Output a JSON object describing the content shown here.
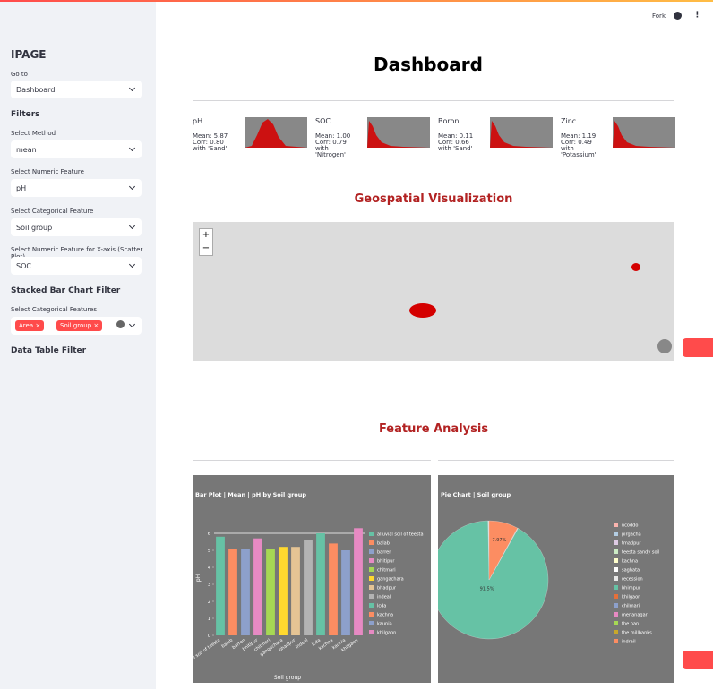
{
  "top_bar": {
    "fork": "Fork"
  },
  "sidebar": {
    "app_name": "IPAGE",
    "goto_label": "Go to",
    "goto_value": "Dashboard",
    "filters": "Filters",
    "method_label": "Select Method",
    "method_value": "mean",
    "numeric_label": "Select Numeric Feature",
    "numeric_value": "pH",
    "categorical_label": "Select Categorical Feature",
    "categorical_value": "Soil group",
    "xaxis_label": "Select Numeric Feature for X-axis (Scatter Plot)",
    "xaxis_value": "SOC",
    "stacked_heading": "Stacked Bar Chart Filter",
    "stacked_label": "Select Categorical Features",
    "stacked_tags": [
      "Area",
      "Soil group"
    ],
    "table_heading": "Data Table Filter"
  },
  "header": {
    "title": "Dashboard"
  },
  "metrics": [
    {
      "label": "pH",
      "mean": "Mean: 5.87",
      "corr": "Corr: 0.80",
      "with": "with 'Sand'"
    },
    {
      "label": "SOC",
      "mean": "Mean: 1.00",
      "corr": "Corr: 0.79",
      "with": "with 'Nitrogen'"
    },
    {
      "label": "Boron",
      "mean": "Mean: 0.11",
      "corr": "Corr: 0.66",
      "with": "with 'Sand'"
    },
    {
      "label": "Zinc",
      "mean": "Mean: 1.19",
      "corr": "Corr: 0.49",
      "with": "with 'Potassium'"
    }
  ],
  "sections": {
    "geo": "Geospatial Visualization",
    "feature": "Feature Analysis"
  },
  "map": {
    "zoom_in": "+",
    "zoom_out": "−"
  },
  "chart_data": [
    {
      "type": "bar",
      "title": "Bar Plot | Mean | pH by Soil group",
      "x_label": "Soil group",
      "y_label": "pH",
      "categories": [
        "alluvial soil of teesta",
        "balab",
        "barren",
        "bhitipur",
        "chitmari",
        "gangachara",
        "bhadpur",
        "indeal",
        "lcda",
        "kachna",
        "kaunia",
        "khilgaon"
      ],
      "values": [
        5.8,
        5.1,
        5.1,
        5.7,
        5.1,
        5.2,
        5.2,
        5.6,
        6.0,
        5.4,
        5.0,
        6.3
      ],
      "colors": [
        "#66c2a5",
        "#fc8d62",
        "#8da0cb",
        "#e78ac3",
        "#a6d854",
        "#ffd92f",
        "#e5c494",
        "#b3b3b3",
        "#66c2a5",
        "#fc8d62",
        "#8da0cb",
        "#e78ac3"
      ],
      "ylim": [
        0,
        7
      ],
      "yticks": [
        0,
        1,
        2,
        3,
        4,
        5,
        6
      ],
      "grid": true
    },
    {
      "type": "pie",
      "title": "Pie Chart | Soil group",
      "categories": [
        "ncoddo",
        "pirgacha",
        "tmadpur",
        "teesta sandy soil",
        "kachna",
        "saghata",
        "recession",
        "bhimpur",
        "khilgaon",
        "chilmari",
        "menanagar",
        "the pan",
        "the millbanks",
        "indrail"
      ],
      "values": [
        0.05,
        0.05,
        0.04,
        0.05,
        0.04,
        0.05,
        0.03,
        91.5,
        0.04,
        0.06,
        0.04,
        0.03,
        0.03,
        7.97
      ],
      "value_labels": [
        null,
        null,
        null,
        null,
        null,
        null,
        null,
        "91.5%",
        null,
        null,
        null,
        null,
        null,
        "7.97%"
      ],
      "colors": [
        "#fbb4ae",
        "#b3cde3",
        "#decbe4",
        "#ccebc5",
        "#ffffcc",
        "#ffffff",
        "#e8e8e8",
        "#66c2a5",
        "#e5703a",
        "#8da0cb",
        "#e78ac3",
        "#a6d854",
        "#c8a82a",
        "#fc8d62"
      ]
    }
  ]
}
